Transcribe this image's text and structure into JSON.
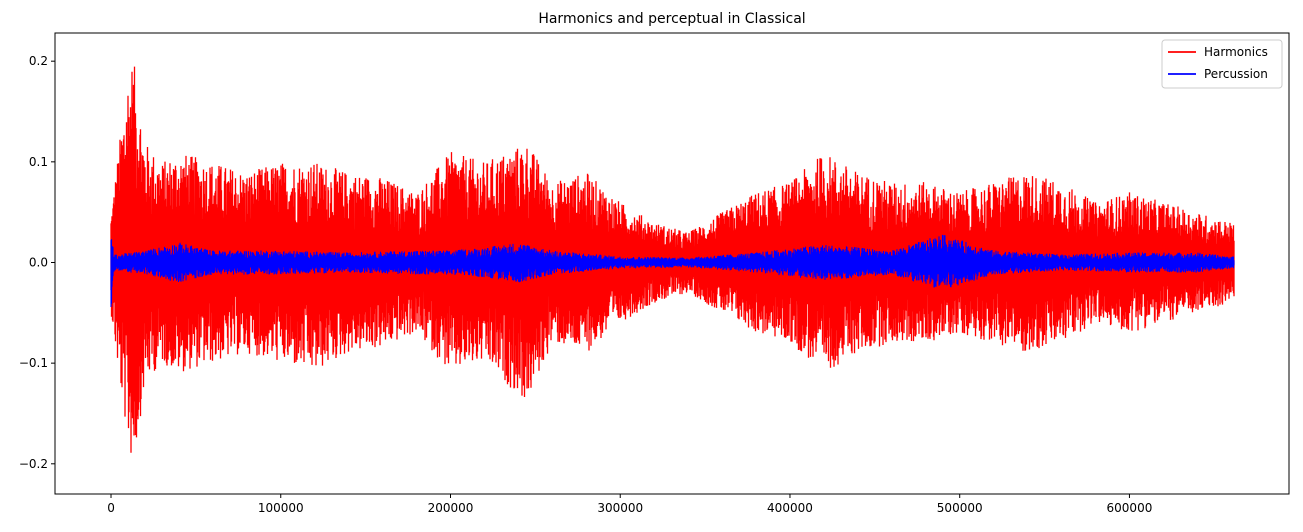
{
  "chart_data": {
    "type": "line",
    "title": "Harmonics and perceptual in Classical",
    "xlabel": "",
    "ylabel": "",
    "xlim": [
      -33000,
      694000
    ],
    "ylim": [
      -0.23,
      0.228
    ],
    "x_ticks": [
      0,
      100000,
      200000,
      300000,
      400000,
      500000,
      600000
    ],
    "x_tick_labels": [
      "0",
      "100000",
      "200000",
      "300000",
      "400000",
      "500000",
      "600000"
    ],
    "y_ticks": [
      -0.2,
      -0.1,
      0.0,
      0.1,
      0.2
    ],
    "y_tick_labels": [
      "−0.2",
      "−0.1",
      "0.0",
      "0.1",
      "0.2"
    ],
    "grid": false,
    "legend_position": "top-right",
    "series": [
      {
        "name": "Harmonics",
        "color": "#ff0000",
        "envelope": {
          "x": [
            0,
            5000,
            10000,
            13000,
            16000,
            20000,
            30000,
            40000,
            60000,
            80000,
            100000,
            120000,
            140000,
            160000,
            180000,
            200000,
            220000,
            245000,
            260000,
            280000,
            300000,
            320000,
            340000,
            360000,
            380000,
            400000,
            420000,
            440000,
            460000,
            480000,
            500000,
            520000,
            540000,
            560000,
            580000,
            600000,
            620000,
            640000,
            660000
          ],
          "upper": [
            0.05,
            0.12,
            0.19,
            0.205,
            0.17,
            0.12,
            0.1,
            0.11,
            0.1,
            0.09,
            0.1,
            0.1,
            0.09,
            0.085,
            0.07,
            0.11,
            0.1,
            0.12,
            0.08,
            0.09,
            0.06,
            0.04,
            0.03,
            0.05,
            0.07,
            0.08,
            0.11,
            0.09,
            0.08,
            0.08,
            0.07,
            0.08,
            0.09,
            0.08,
            0.06,
            0.07,
            0.06,
            0.05,
            0.04
          ],
          "lower": [
            -0.05,
            -0.12,
            -0.18,
            -0.205,
            -0.17,
            -0.12,
            -0.1,
            -0.11,
            -0.1,
            -0.09,
            -0.1,
            -0.11,
            -0.09,
            -0.085,
            -0.07,
            -0.11,
            -0.1,
            -0.14,
            -0.08,
            -0.09,
            -0.06,
            -0.04,
            -0.03,
            -0.05,
            -0.07,
            -0.08,
            -0.11,
            -0.09,
            -0.08,
            -0.08,
            -0.07,
            -0.08,
            -0.09,
            -0.08,
            -0.06,
            -0.07,
            -0.06,
            -0.05,
            -0.04
          ]
        }
      },
      {
        "name": "Percussion",
        "color": "#0000ff",
        "envelope": {
          "x": [
            0,
            1500,
            3000,
            20000,
            40000,
            60000,
            100000,
            140000,
            180000,
            200000,
            220000,
            240000,
            260000,
            300000,
            340000,
            380000,
            420000,
            460000,
            490000,
            520000,
            560000,
            600000,
            640000,
            660000
          ],
          "upper": [
            0.035,
            0.01,
            0.008,
            0.012,
            0.02,
            0.012,
            0.012,
            0.01,
            0.012,
            0.012,
            0.015,
            0.02,
            0.012,
            0.006,
            0.005,
            0.01,
            0.018,
            0.012,
            0.028,
            0.012,
            0.008,
            0.01,
            0.01,
            0.006
          ],
          "lower": [
            -0.05,
            -0.01,
            -0.008,
            -0.012,
            -0.02,
            -0.012,
            -0.012,
            -0.01,
            -0.012,
            -0.012,
            -0.015,
            -0.02,
            -0.012,
            -0.006,
            -0.005,
            -0.01,
            -0.018,
            -0.012,
            -0.028,
            -0.012,
            -0.008,
            -0.01,
            -0.01,
            -0.006
          ]
        }
      }
    ]
  }
}
